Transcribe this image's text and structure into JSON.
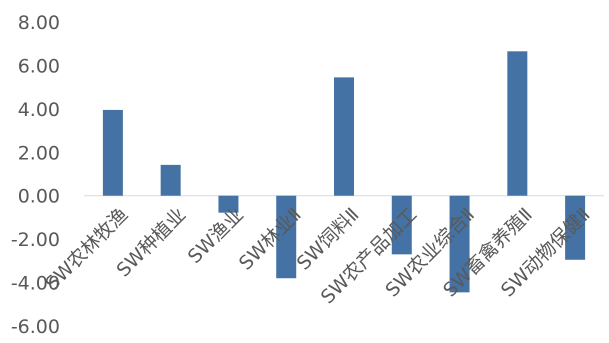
{
  "chart_data": {
    "type": "bar",
    "categories": [
      "SW农林牧渔",
      "SW种植业",
      "SW渔业",
      "SW林业Ⅱ",
      "SW饲料Ⅱ",
      "SW农产品加工",
      "SW农业综合Ⅱ",
      "SW畜禽养殖Ⅱ",
      "SW动物保健Ⅱ"
    ],
    "values": [
      3.95,
      1.42,
      -0.78,
      -3.8,
      5.45,
      -2.7,
      -4.45,
      6.65,
      -2.95
    ],
    "ylim": [
      -6,
      8
    ],
    "yticks": [
      "8.00",
      "6.00",
      "4.00",
      "2.00",
      "0.00",
      "-2.00",
      "-4.00",
      "-6.00"
    ],
    "grid": false,
    "colors": {
      "bar": "#4472a4"
    }
  }
}
